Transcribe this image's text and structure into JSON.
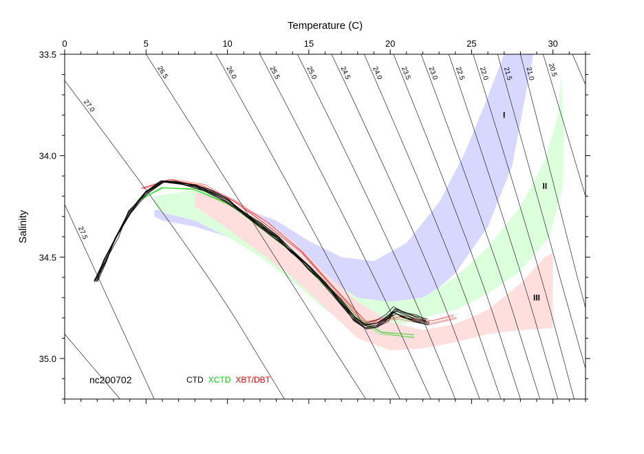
{
  "chart_data": {
    "type": "scatter",
    "xlabel": "Temperature (C)",
    "ylabel": "Salinity",
    "xlim": [
      0,
      32
    ],
    "ylim": [
      35.2,
      33.5
    ],
    "y_axis_inverted": true,
    "x_ticks": [
      0,
      5,
      10,
      15,
      20,
      25,
      30
    ],
    "y_ticks": [
      33.5,
      34.0,
      34.5,
      35.0
    ],
    "x_tick_labels": [
      "0",
      "5",
      "10",
      "15",
      "20",
      "25",
      "30"
    ],
    "y_tick_labels": [
      "33.5",
      "34.0",
      "34.5",
      "35.0"
    ],
    "grid": false,
    "annotation": "nc200702",
    "legend": [
      {
        "label": "CTD",
        "color": "#000000"
      },
      {
        "label": "XCTD",
        "color": "#00d000"
      },
      {
        "label": "XBT/DBT",
        "color": "#e00000"
      }
    ],
    "isopycnals": [
      {
        "label": "27.5",
        "points": [
          [
            0,
            34.24
          ],
          [
            5.5,
            35.2
          ]
        ]
      },
      {
        "label": "27.0",
        "points": [
          [
            0,
            33.63
          ],
          [
            8.2,
            34.5
          ],
          [
            13.5,
            35.2
          ]
        ]
      },
      {
        "label": "26.5",
        "points": [
          [
            5.0,
            33.5
          ],
          [
            12.5,
            34.45
          ],
          [
            18.5,
            35.2
          ]
        ]
      },
      {
        "label": "26.0",
        "points": [
          [
            9.3,
            33.5
          ],
          [
            15.9,
            34.45
          ],
          [
            20.6,
            35.2
          ]
        ]
      },
      {
        "label": "25.5",
        "points": [
          [
            12.0,
            33.5
          ],
          [
            18.2,
            34.45
          ],
          [
            22.5,
            35.2
          ]
        ]
      },
      {
        "label": "25.0",
        "points": [
          [
            14.3,
            33.5
          ],
          [
            20.2,
            34.45
          ],
          [
            24.0,
            35.2
          ]
        ]
      },
      {
        "label": "24.5",
        "points": [
          [
            16.4,
            33.5
          ],
          [
            22.0,
            34.45
          ],
          [
            25.5,
            35.2
          ]
        ]
      },
      {
        "label": "24.0",
        "points": [
          [
            18.4,
            33.5
          ],
          [
            23.6,
            34.45
          ],
          [
            26.8,
            35.2
          ]
        ]
      },
      {
        "label": "23.5",
        "points": [
          [
            20.2,
            33.5
          ],
          [
            25.0,
            34.45
          ],
          [
            28.0,
            35.2
          ]
        ]
      },
      {
        "label": "23.0",
        "points": [
          [
            21.9,
            33.5
          ],
          [
            26.3,
            34.45
          ],
          [
            29.2,
            35.2
          ]
        ]
      },
      {
        "label": "22.5",
        "points": [
          [
            23.6,
            33.5
          ],
          [
            27.6,
            34.45
          ],
          [
            30.3,
            35.2
          ]
        ]
      },
      {
        "label": "22.0",
        "points": [
          [
            25.1,
            33.5
          ],
          [
            28.8,
            34.45
          ],
          [
            31.3,
            35.2
          ]
        ]
      },
      {
        "label": "21.5",
        "points": [
          [
            26.6,
            33.5
          ],
          [
            29.9,
            34.45
          ],
          [
            32.0,
            35.05
          ]
        ]
      },
      {
        "label": "21.0",
        "points": [
          [
            28.0,
            33.5
          ],
          [
            31.0,
            34.45
          ],
          [
            32.0,
            34.75
          ]
        ]
      },
      {
        "label": "20.5",
        "points": [
          [
            29.4,
            33.5
          ],
          [
            32.0,
            34.2
          ]
        ]
      },
      {
        "label": "",
        "points": [
          [
            0,
            34.88
          ],
          [
            3.4,
            35.2
          ]
        ]
      },
      {
        "label": "",
        "points": [
          [
            31.2,
            33.5
          ],
          [
            32.0,
            33.65
          ]
        ]
      }
    ],
    "regions": [
      {
        "label": "I",
        "color": "#d8d8ff",
        "label_at": [
          27.0,
          33.8
        ],
        "upper": [
          [
            5.5,
            34.27
          ],
          [
            7.5,
            34.22
          ],
          [
            10,
            34.23
          ],
          [
            13,
            34.32
          ],
          [
            15,
            34.42
          ],
          [
            17,
            34.5
          ],
          [
            19,
            34.52
          ],
          [
            21,
            34.43
          ],
          [
            23,
            34.23
          ],
          [
            24.5,
            34.0
          ],
          [
            25.8,
            33.75
          ],
          [
            27,
            33.5
          ],
          [
            28.8,
            33.5
          ]
        ],
        "lower": [
          [
            28.8,
            33.5
          ],
          [
            28.2,
            33.75
          ],
          [
            27.5,
            34.05
          ],
          [
            26.0,
            34.35
          ],
          [
            24,
            34.58
          ],
          [
            22,
            34.72
          ],
          [
            20,
            34.75
          ],
          [
            18,
            34.72
          ],
          [
            16,
            34.65
          ],
          [
            14,
            34.57
          ],
          [
            12,
            34.48
          ],
          [
            10,
            34.4
          ],
          [
            8,
            34.35
          ],
          [
            6,
            34.32
          ],
          [
            5.5,
            34.3
          ]
        ]
      },
      {
        "label": "II",
        "color": "#dcffdc",
        "label_at": [
          29.5,
          34.15
        ],
        "upper": [
          [
            5.5,
            34.2
          ],
          [
            8,
            34.17
          ],
          [
            10,
            34.22
          ],
          [
            12,
            34.32
          ],
          [
            14,
            34.45
          ],
          [
            16,
            34.6
          ],
          [
            18,
            34.7
          ],
          [
            20,
            34.72
          ],
          [
            22,
            34.7
          ],
          [
            24,
            34.6
          ],
          [
            26,
            34.45
          ],
          [
            28,
            34.25
          ],
          [
            29.5,
            34.02
          ],
          [
            30.3,
            33.8
          ],
          [
            30.5,
            33.6
          ]
        ],
        "lower": [
          [
            30.5,
            33.6
          ],
          [
            30.7,
            33.9
          ],
          [
            30.6,
            34.15
          ],
          [
            29.8,
            34.4
          ],
          [
            28,
            34.57
          ],
          [
            26,
            34.68
          ],
          [
            24,
            34.76
          ],
          [
            22,
            34.8
          ],
          [
            20,
            34.85
          ],
          [
            18,
            34.85
          ],
          [
            16,
            34.76
          ],
          [
            14,
            34.62
          ],
          [
            12,
            34.5
          ],
          [
            10,
            34.4
          ],
          [
            8,
            34.32
          ],
          [
            6,
            34.28
          ],
          [
            5.5,
            34.25
          ]
        ]
      },
      {
        "label": "III",
        "color": "#ffdede",
        "label_at": [
          29.0,
          34.7
        ],
        "upper": [
          [
            8,
            34.18
          ],
          [
            10,
            34.22
          ],
          [
            12,
            34.3
          ],
          [
            14,
            34.42
          ],
          [
            16,
            34.58
          ],
          [
            18,
            34.72
          ],
          [
            20,
            34.82
          ],
          [
            22,
            34.86
          ],
          [
            24,
            34.83
          ],
          [
            26,
            34.76
          ],
          [
            28,
            34.63
          ],
          [
            29.5,
            34.5
          ],
          [
            30.0,
            34.48
          ]
        ],
        "lower": [
          [
            30.0,
            34.48
          ],
          [
            30.0,
            34.85
          ],
          [
            28,
            34.86
          ],
          [
            26,
            34.88
          ],
          [
            24,
            34.92
          ],
          [
            22,
            34.95
          ],
          [
            20,
            34.96
          ],
          [
            18,
            34.9
          ],
          [
            16,
            34.75
          ],
          [
            14,
            34.6
          ],
          [
            12,
            34.48
          ],
          [
            10,
            34.36
          ],
          [
            8,
            34.25
          ]
        ]
      }
    ],
    "series": [
      {
        "name": "CTD",
        "color": "#000000",
        "points": [
          [
            1.9,
            34.62
          ],
          [
            2.5,
            34.52
          ],
          [
            3.2,
            34.4
          ],
          [
            4.0,
            34.28
          ],
          [
            5.0,
            34.18
          ],
          [
            6.0,
            34.13
          ],
          [
            7.0,
            34.13
          ],
          [
            8.0,
            34.15
          ],
          [
            9.0,
            34.18
          ],
          [
            10.0,
            34.22
          ],
          [
            11.0,
            34.28
          ],
          [
            12.0,
            34.34
          ],
          [
            13.0,
            34.4
          ],
          [
            14.0,
            34.47
          ],
          [
            15.0,
            34.55
          ],
          [
            16.0,
            34.63
          ],
          [
            17.0,
            34.72
          ],
          [
            17.8,
            34.8
          ],
          [
            18.5,
            34.84
          ],
          [
            19.2,
            34.83
          ],
          [
            19.8,
            34.8
          ],
          [
            20.3,
            34.76
          ],
          [
            20.8,
            34.78
          ],
          [
            21.5,
            34.8
          ],
          [
            22.3,
            34.82
          ]
        ]
      },
      {
        "name": "XCTD",
        "color": "#00d000",
        "points": [
          [
            4.5,
            34.22
          ],
          [
            6.0,
            34.16
          ],
          [
            8.0,
            34.17
          ],
          [
            10.0,
            34.24
          ],
          [
            12.0,
            34.35
          ],
          [
            14.0,
            34.48
          ],
          [
            16.0,
            34.64
          ],
          [
            18.0,
            34.81
          ],
          [
            19.5,
            34.88
          ],
          [
            21.5,
            34.9
          ]
        ]
      },
      {
        "name": "XBT/DBT",
        "color": "#e00000",
        "points": [
          [
            4.8,
            34.16
          ],
          [
            6.5,
            34.12
          ],
          [
            8.5,
            34.15
          ],
          [
            10.5,
            34.23
          ],
          [
            12.5,
            34.34
          ],
          [
            14.5,
            34.48
          ],
          [
            16.5,
            34.66
          ],
          [
            18.5,
            34.83
          ],
          [
            20.5,
            34.8
          ],
          [
            22.5,
            34.83
          ],
          [
            24.0,
            34.8
          ]
        ]
      }
    ]
  }
}
